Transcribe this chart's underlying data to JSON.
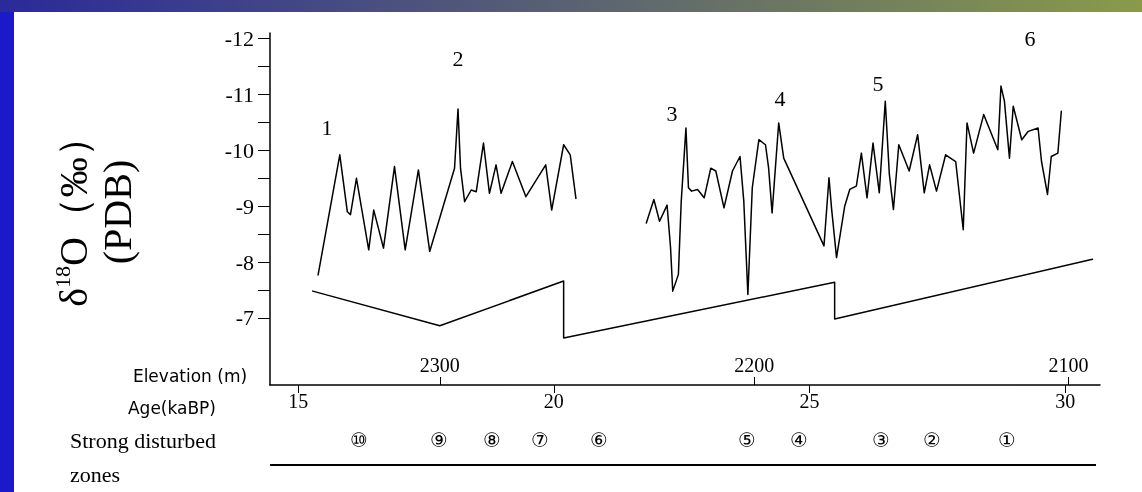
{
  "chart_data": {
    "type": "line",
    "ylabel": "δ$^{18}$O（‰）\n(PDB)",
    "xlabel": "Elevation (m)",
    "x2label": "Age(kaBP)",
    "xlim": [
      2354,
      2090
    ],
    "xticks": [
      2300,
      2200,
      2100
    ],
    "x2lim": [
      14.45,
      30.68
    ],
    "x2ticks": [
      15,
      20,
      25,
      30
    ],
    "ylim": [
      -5.8,
      -12.1
    ],
    "yticks": [
      -12,
      {
        "value": -11.5,
        "label": null
      },
      -11,
      {
        "value": -10.5,
        "label": null
      },
      -10,
      {
        "value": -9.5,
        "label": null
      },
      -9,
      {
        "value": -8.5,
        "label": null
      },
      -8,
      {
        "value": -7.5,
        "label": null
      },
      -7
    ],
    "grid": false,
    "marker": "none",
    "line_style": "solid",
    "series": [
      {
        "color": "#000000",
        "x": [
          2338.7,
          2331.8,
          2329.4,
          2328.4,
          2326.5,
          2322.6,
          2321.0,
          2317.9,
          2314.4,
          2311.0,
          2306.8,
          2303.2,
          2295.3,
          2294.2,
          2293.4,
          2292.1,
          2290.0,
          2288.4,
          2286.1,
          2284.2,
          2282.1,
          2280.5,
          2276.9,
          2272.6,
          2266.3,
          2264.4,
          2260.6,
          2258.5,
          2256.7,
          2245,
          2234.3,
          2231.9,
          2230.1,
          2227.7,
          2226.6,
          2225.9,
          2224.1,
          2223.2,
          2221.7,
          2220.9,
          2219.9,
          2218.0,
          2215.9,
          2213.8,
          2212.2,
          2209.6,
          2206.9,
          2204.5,
          2203.3,
          2202.0,
          2200.6,
          2198.5,
          2196.4,
          2195.4,
          2194.3,
          2192.2,
          2190.6,
          2177.8,
          2176.2,
          2175.4,
          2173.8,
          2171.2,
          2169.6,
          2167.5,
          2165.9,
          2164.1,
          2162.2,
          2160.2,
          2158.3,
          2157.0,
          2155.7,
          2154.0,
          2150.7,
          2148.0,
          2145.9,
          2144.2,
          2142.0,
          2139.1,
          2135.9,
          2133.5,
          2132.3,
          2130.2,
          2127.0,
          2122.5,
          2121.5,
          2120.4,
          2118.8,
          2117.6,
          2114.9,
          2112.8,
          2109.7,
          2108.6,
          2106.7,
          2105.5,
          2103.4,
          2102.3
        ],
        "values": [
          -7.77,
          -9.92,
          -8.9,
          -8.85,
          -9.5,
          -8.22,
          -8.93,
          -8.25,
          -9.71,
          -8.22,
          -9.65,
          -8.19,
          -9.68,
          -10.74,
          -9.68,
          -9.08,
          -9.29,
          -9.26,
          -10.13,
          -9.23,
          -9.74,
          -9.23,
          -9.8,
          -9.17,
          -9.74,
          -8.93,
          -10.1,
          -9.92,
          -9.14,
          null,
          -8.7,
          -9.12,
          -8.73,
          -9.02,
          -8.26,
          -7.48,
          -7.78,
          -9.09,
          -10.4,
          -9.33,
          -9.27,
          -9.3,
          -9.15,
          -9.68,
          -9.63,
          -8.97,
          -9.63,
          -9.89,
          -9.09,
          -7.42,
          -9.33,
          -10.19,
          -10.1,
          -9.68,
          -8.88,
          -10.49,
          -9.86,
          -8.29,
          -9.51,
          -8.97,
          -8.08,
          -9.0,
          -9.3,
          -9.36,
          -9.95,
          -9.15,
          -10.13,
          -9.24,
          -10.88,
          -9.57,
          -8.94,
          -10.1,
          -9.63,
          -10.28,
          -9.24,
          -9.74,
          -9.27,
          -9.92,
          -9.8,
          -8.58,
          -10.49,
          -9.95,
          -10.64,
          -10.01,
          -11.15,
          -10.88,
          -9.86,
          -10.79,
          -10.19,
          -10.34,
          -10.4,
          -9.8,
          -9.21,
          -9.89,
          -9.95,
          -10.7
        ]
      },
      {
        "color": "#000000",
        "x": [
          2340.4,
          2300,
          2260.6,
          2260.6,
          2174.4,
          2174.4,
          2092.4
        ],
        "values": [
          -7.48,
          -6.86,
          -7.66,
          -6.64,
          -7.64,
          -6.98,
          -8.05
        ]
      }
    ],
    "annotations": [
      "1",
      "2",
      "3",
      "4",
      "5",
      "6",
      "Strong disturbed\nzones",
      "⑩",
      "⑨",
      "⑧",
      "⑦",
      "⑥",
      "⑤",
      "④",
      "③",
      "②",
      "①"
    ]
  }
}
